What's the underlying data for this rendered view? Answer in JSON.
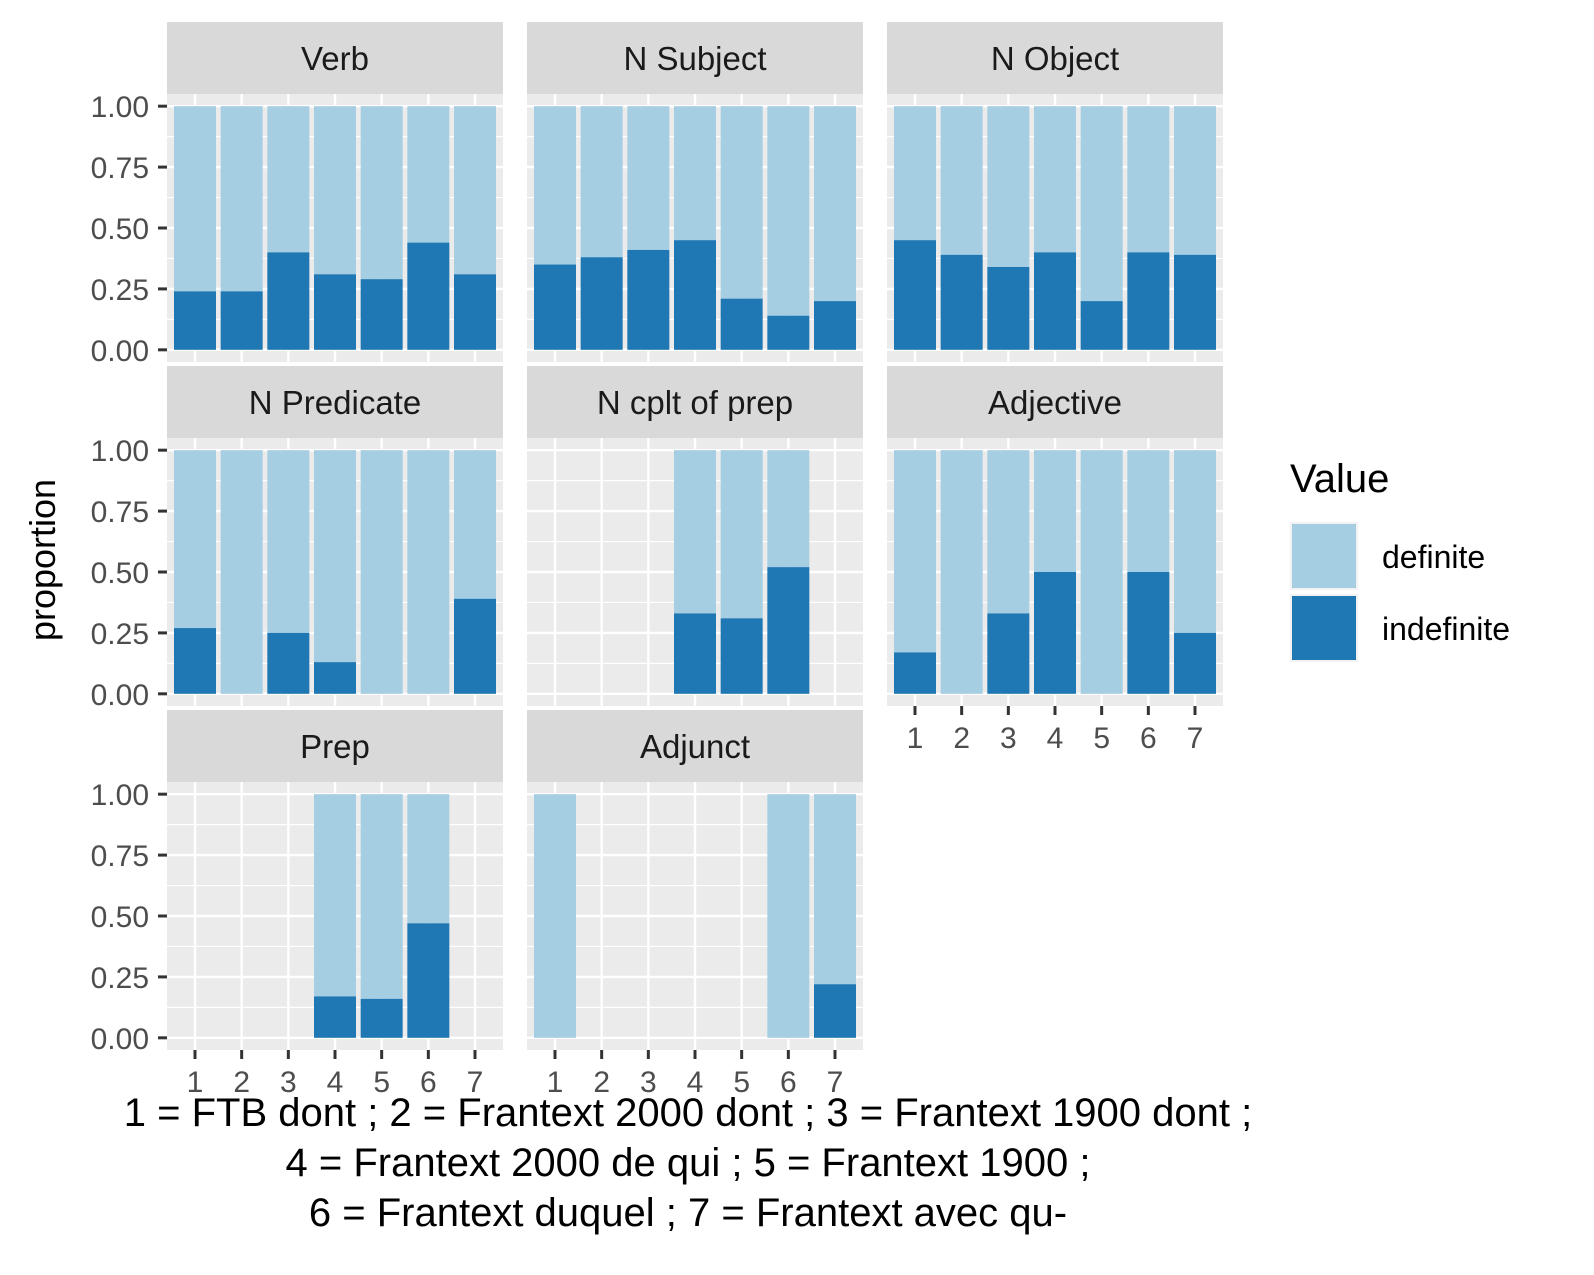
{
  "chart_data": {
    "type": "bar",
    "subtype": "stacked-proportion-facets",
    "ylabel": "proportion",
    "ylim": [
      0,
      1
    ],
    "yticks": [
      "0.00",
      "0.25",
      "0.50",
      "0.75",
      "1.00"
    ],
    "categories": [
      "1",
      "2",
      "3",
      "4",
      "5",
      "6",
      "7"
    ],
    "legend": {
      "title": "Value",
      "position": "right",
      "entries": [
        {
          "label": "definite",
          "color": "#A6CEE3"
        },
        {
          "label": "indefinite",
          "color": "#1F78B4"
        }
      ]
    },
    "panels": [
      {
        "title": "Verb",
        "definite": [
          0.76,
          0.76,
          0.6,
          0.69,
          0.71,
          0.56,
          0.69
        ],
        "indefinite": [
          0.24,
          0.24,
          0.4,
          0.31,
          0.29,
          0.44,
          0.31
        ]
      },
      {
        "title": "N Subject",
        "definite": [
          0.65,
          0.62,
          0.59,
          0.55,
          0.79,
          0.86,
          0.8
        ],
        "indefinite": [
          0.35,
          0.38,
          0.41,
          0.45,
          0.21,
          0.14,
          0.2
        ]
      },
      {
        "title": "N Object",
        "definite": [
          0.55,
          0.61,
          0.66,
          0.6,
          0.8,
          0.6,
          0.61
        ],
        "indefinite": [
          0.45,
          0.39,
          0.34,
          0.4,
          0.2,
          0.4,
          0.39
        ]
      },
      {
        "title": "N Predicate",
        "definite": [
          0.73,
          1.0,
          0.75,
          0.87,
          1.0,
          1.0,
          0.61
        ],
        "indefinite": [
          0.27,
          0.0,
          0.25,
          0.13,
          0.0,
          0.0,
          0.39
        ]
      },
      {
        "title": "N cplt of prep",
        "definite": [
          null,
          null,
          null,
          0.67,
          0.69,
          0.48,
          null
        ],
        "indefinite": [
          null,
          null,
          null,
          0.33,
          0.31,
          0.52,
          null
        ]
      },
      {
        "title": "Adjective",
        "definite": [
          0.83,
          1.0,
          0.67,
          0.5,
          1.0,
          0.5,
          0.75
        ],
        "indefinite": [
          0.17,
          0.0,
          0.33,
          0.5,
          0.0,
          0.5,
          0.25
        ]
      },
      {
        "title": "Prep",
        "definite": [
          null,
          null,
          null,
          0.83,
          0.84,
          0.53,
          null
        ],
        "indefinite": [
          null,
          null,
          null,
          0.17,
          0.16,
          0.47,
          null
        ]
      },
      {
        "title": "Adjunct",
        "definite": [
          1.0,
          null,
          null,
          null,
          null,
          1.0,
          0.78
        ],
        "indefinite": [
          0.0,
          null,
          null,
          null,
          null,
          0.0,
          0.22
        ]
      }
    ],
    "grid": true,
    "caption": [
      "1 = FTB dont ; 2 = Frantext 2000 dont ; 3 = Frantext 1900 dont ;",
      "4 = Frantext 2000 de qui ; 5 = Frantext 1900 ;",
      "6 = Frantext duquel ; 7 = Frantext avec qu-"
    ]
  }
}
